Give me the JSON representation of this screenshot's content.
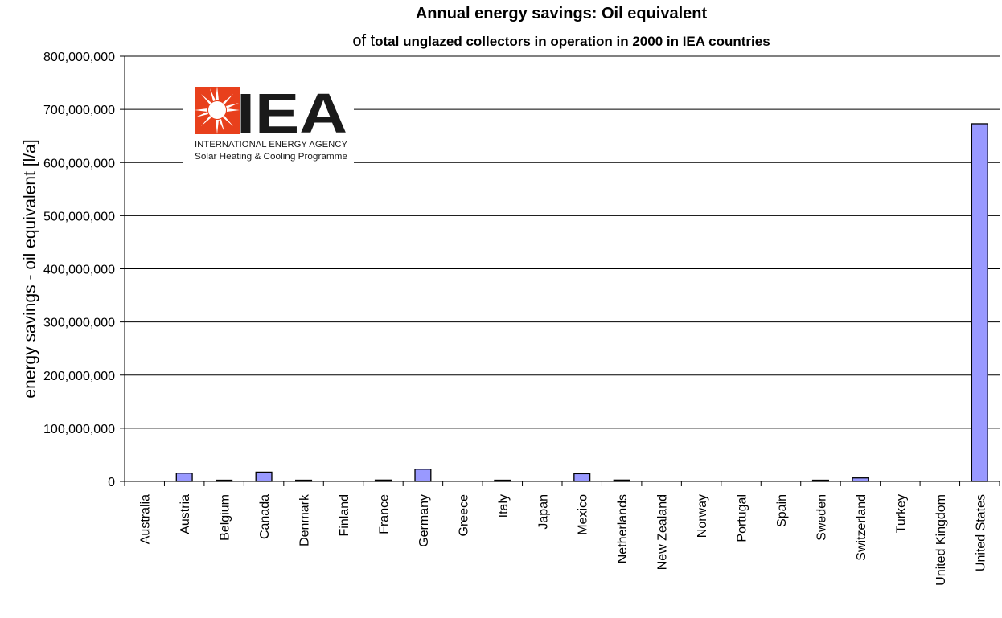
{
  "chart_data": {
    "type": "bar",
    "title": "Annual energy savings: Oil equivalent",
    "subtitle_lead": "of t",
    "subtitle_rest": "otal unglazed collectors in operation in 2000 in IEA countries",
    "ylabel": "energy savings - oil equivalent [l/a]",
    "xlabel": "",
    "ylim": [
      0,
      800000000
    ],
    "yticks": [
      0,
      100000000,
      200000000,
      300000000,
      400000000,
      500000000,
      600000000,
      700000000,
      800000000
    ],
    "ytick_labels": [
      "0",
      "100,000,000",
      "200,000,000",
      "300,000,000",
      "400,000,000",
      "500,000,000",
      "600,000,000",
      "700,000,000",
      "800,000,000"
    ],
    "grid": true,
    "legend": "none",
    "bar_color": "#9999ff",
    "categories": [
      "Australia",
      "Austria",
      "Belgium",
      "Canada",
      "Denmark",
      "Finland",
      "France",
      "Germany",
      "Greece",
      "Italy",
      "Japan",
      "Mexico",
      "Netherlands",
      "New Zealand",
      "Norway",
      "Portugal",
      "Spain",
      "Sweden",
      "Switzerland",
      "Turkey",
      "United Kingdom",
      "United States"
    ],
    "values": [
      0,
      15500000,
      1000000,
      17500000,
      1000000,
      0,
      2500000,
      23000000,
      0,
      1000000,
      0,
      14500000,
      2500000,
      0,
      0,
      0,
      0,
      1000000,
      6500000,
      0,
      0,
      673000000
    ]
  },
  "logo": {
    "acronym": "IEA",
    "line1": "INTERNATIONAL ENERGY AGENCY",
    "line2": "Solar Heating & Cooling Programme",
    "brand_red": "#e8401c"
  }
}
